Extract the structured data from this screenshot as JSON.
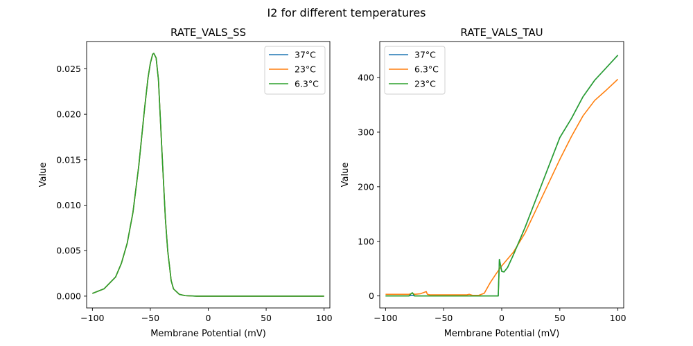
{
  "figure": {
    "suptitle": "I2 for different temperatures"
  },
  "chart_data": [
    {
      "type": "line",
      "title": "RATE_VALS_SS",
      "xlabel": "Membrane Potential (mV)",
      "ylabel": "Value",
      "xlim": [
        -105,
        105
      ],
      "ylim": [
        -0.0013,
        0.028
      ],
      "xticks": [
        -100,
        -50,
        0,
        50,
        100
      ],
      "xtick_labels": [
        "−100",
        "−50",
        "0",
        "50",
        "100"
      ],
      "yticks": [
        0,
        0.005,
        0.01,
        0.015,
        0.02,
        0.025
      ],
      "ytick_labels": [
        "0.000",
        "0.005",
        "0.010",
        "0.015",
        "0.020",
        "0.025"
      ],
      "legend": "top-right",
      "series": [
        {
          "name": "37°C",
          "color": "#1f77b4",
          "x": [
            -100,
            -90,
            -80,
            -75,
            -70,
            -65,
            -60,
            -55,
            -52,
            -50,
            -48,
            -47,
            -45,
            -43,
            -40,
            -37,
            -35,
            -32,
            -30,
            -25,
            -20,
            -10,
            0,
            50,
            100
          ],
          "y": [
            0.0003,
            0.0008,
            0.0021,
            0.0036,
            0.0058,
            0.0092,
            0.0143,
            0.0206,
            0.024,
            0.0256,
            0.0266,
            0.0267,
            0.0262,
            0.0238,
            0.016,
            0.0085,
            0.005,
            0.0017,
            0.0008,
            0.0002,
            5e-05,
            0.0,
            0.0,
            0.0,
            0.0
          ]
        },
        {
          "name": "23°C",
          "color": "#ff7f0e",
          "x": [
            -100,
            -90,
            -80,
            -75,
            -70,
            -65,
            -60,
            -55,
            -52,
            -50,
            -48,
            -47,
            -45,
            -43,
            -40,
            -37,
            -35,
            -32,
            -30,
            -25,
            -20,
            -10,
            0,
            50,
            100
          ],
          "y": [
            0.0003,
            0.0008,
            0.0021,
            0.0036,
            0.0058,
            0.0092,
            0.0143,
            0.0206,
            0.024,
            0.0256,
            0.0266,
            0.0267,
            0.0262,
            0.0238,
            0.016,
            0.0085,
            0.005,
            0.0017,
            0.0008,
            0.0002,
            5e-05,
            0.0,
            0.0,
            0.0,
            0.0
          ]
        },
        {
          "name": "6.3°C",
          "color": "#2ca02c",
          "x": [
            -100,
            -90,
            -80,
            -75,
            -70,
            -65,
            -60,
            -55,
            -52,
            -50,
            -48,
            -47,
            -45,
            -43,
            -40,
            -37,
            -35,
            -32,
            -30,
            -25,
            -20,
            -10,
            0,
            50,
            100
          ],
          "y": [
            0.0003,
            0.0008,
            0.0021,
            0.0036,
            0.0058,
            0.0092,
            0.0143,
            0.0206,
            0.024,
            0.0256,
            0.0266,
            0.0267,
            0.0262,
            0.0238,
            0.016,
            0.0085,
            0.005,
            0.0017,
            0.0008,
            0.0002,
            5e-05,
            0.0,
            0.0,
            0.0,
            0.0
          ]
        }
      ]
    },
    {
      "type": "line",
      "title": "RATE_VALS_TAU",
      "xlabel": "Membrane Potential (mV)",
      "ylabel": "Value",
      "xlim": [
        -105,
        105
      ],
      "ylim": [
        -22,
        466
      ],
      "xticks": [
        -100,
        -50,
        0,
        50,
        100
      ],
      "xtick_labels": [
        "−100",
        "−50",
        "0",
        "50",
        "100"
      ],
      "yticks": [
        0,
        100,
        200,
        300,
        400
      ],
      "ytick_labels": [
        "0",
        "100",
        "200",
        "300",
        "400"
      ],
      "legend": "top-left",
      "series": [
        {
          "name": "37°C",
          "color": "#1f77b4",
          "x": [
            -100,
            -80,
            -77,
            -75,
            -70,
            -60,
            -50,
            -40,
            -30,
            -20,
            -10,
            -5,
            -3,
            -2,
            0,
            2,
            5,
            10,
            20,
            30,
            40,
            50,
            60,
            70,
            80,
            90,
            100
          ],
          "y": [
            0,
            0,
            1,
            0,
            0,
            0,
            0,
            0,
            0,
            0,
            0,
            0,
            0,
            67,
            45,
            44,
            52,
            75,
            125,
            180,
            235,
            290,
            325,
            365,
            395,
            418,
            441
          ]
        },
        {
          "name": "6.3°C",
          "color": "#ff7f0e",
          "x": [
            -100,
            -80,
            -78,
            -77,
            -75,
            -70,
            -65,
            -64,
            -62,
            -50,
            -40,
            -30,
            -28,
            -25,
            -20,
            -15,
            -10,
            -5,
            0,
            10,
            20,
            30,
            40,
            50,
            60,
            70,
            80,
            90,
            100
          ],
          "y": [
            3,
            3,
            4,
            5,
            3,
            4,
            8,
            3,
            2,
            2,
            2,
            2,
            3,
            1,
            1,
            5,
            24,
            40,
            55,
            80,
            115,
            160,
            205,
            250,
            292,
            330,
            358,
            377,
            397
          ]
        },
        {
          "name": "23°C",
          "color": "#2ca02c",
          "x": [
            -100,
            -80,
            -77,
            -75,
            -70,
            -60,
            -50,
            -40,
            -30,
            -20,
            -10,
            -5,
            -3,
            -2,
            0,
            2,
            5,
            10,
            20,
            30,
            40,
            50,
            60,
            70,
            80,
            90,
            100
          ],
          "y": [
            0,
            0,
            6,
            0,
            0,
            0,
            0,
            0,
            0,
            0,
            0,
            0,
            0,
            67,
            45,
            44,
            52,
            75,
            125,
            180,
            235,
            290,
            325,
            365,
            395,
            418,
            441
          ]
        }
      ]
    }
  ]
}
